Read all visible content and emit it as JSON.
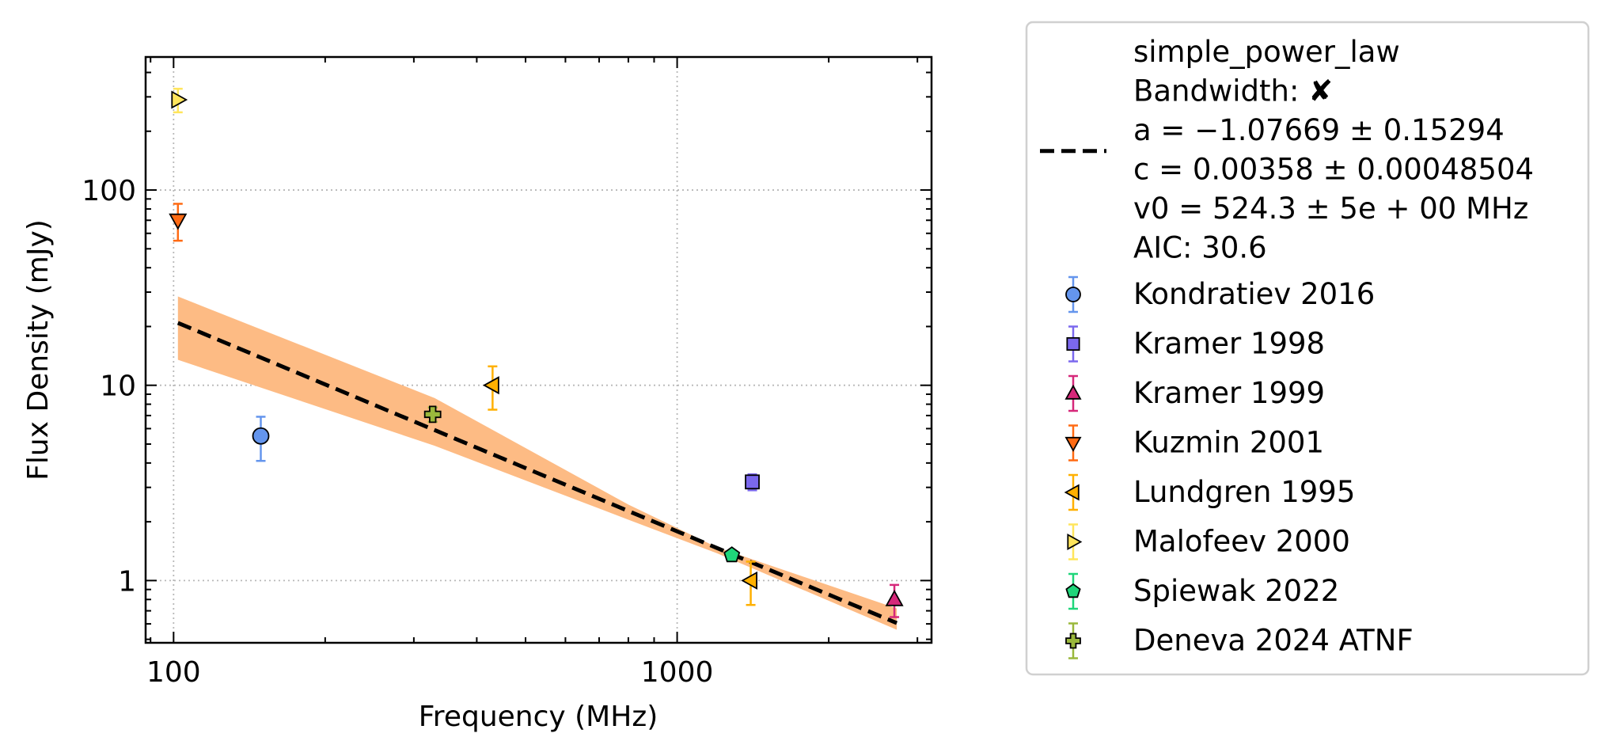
{
  "chart_data": {
    "type": "scatter",
    "xlabel": "Frequency (MHz)",
    "ylabel": "Flux Density (mJy)",
    "x_scale": "log",
    "y_scale": "log",
    "xlim": [
      88,
      3200
    ],
    "ylim": [
      0.48,
      480
    ],
    "x_ticks": [
      {
        "value": 100,
        "label": "100"
      },
      {
        "value": 1000,
        "label": "1000"
      }
    ],
    "y_ticks": [
      {
        "value": 1,
        "label": "1"
      },
      {
        "value": 10,
        "label": "10"
      },
      {
        "value": 100,
        "label": "100"
      }
    ],
    "grid": true,
    "legend_placement": "outside-right",
    "fit": {
      "label_lines": [
        "simple_power_law",
        "Bandwidth: ✘",
        "a = −1.07669 ± 0.15294",
        "c = 0.00358 ± 0.00048504",
        "v0 = 524.3 ± 5e + 00 MHz",
        "AIC: 30.6"
      ],
      "a": -1.07669,
      "c": 0.00358,
      "v0": 524.3,
      "x_range": [
        102,
        2730
      ],
      "line_color": "#000000",
      "band_color": "#fdbb84",
      "band_lower": [
        {
          "x": 102,
          "y": 13.5
        },
        {
          "x": 330,
          "y": 4.9
        },
        {
          "x": 800,
          "y": 2.05
        },
        {
          "x": 1200,
          "y": 1.38
        },
        {
          "x": 2730,
          "y": 0.56
        }
      ],
      "band_upper": [
        {
          "x": 102,
          "y": 28.5
        },
        {
          "x": 330,
          "y": 8.6
        },
        {
          "x": 800,
          "y": 2.45
        },
        {
          "x": 1200,
          "y": 1.48
        },
        {
          "x": 2730,
          "y": 0.72
        }
      ]
    },
    "series": [
      {
        "name": "Kondratiev 2016",
        "marker": "circle",
        "color": "#6495ed",
        "ecolor": "#6495ed",
        "points": [
          {
            "x": 149,
            "y": 5.5,
            "ylo": 4.1,
            "yhi": 6.9
          }
        ]
      },
      {
        "name": "Kramer 1998",
        "marker": "square",
        "color": "#7b68ee",
        "ecolor": "#7b68ee",
        "points": [
          {
            "x": 1410,
            "y": 3.2,
            "ylo": 2.9,
            "yhi": 3.5
          }
        ]
      },
      {
        "name": "Kramer 1999",
        "marker": "triangle-up",
        "color": "#d6287a",
        "ecolor": "#d6287a",
        "points": [
          {
            "x": 2700,
            "y": 0.8,
            "ylo": 0.65,
            "yhi": 0.95
          }
        ]
      },
      {
        "name": "Kuzmin 2001",
        "marker": "triangle-down",
        "color": "#ff6a13",
        "ecolor": "#ff6a13",
        "points": [
          {
            "x": 102,
            "y": 70,
            "ylo": 55,
            "yhi": 85
          }
        ]
      },
      {
        "name": "Lundgren 1995",
        "marker": "triangle-left",
        "color": "#ffb000",
        "ecolor": "#ffb000",
        "points": [
          {
            "x": 430,
            "y": 10,
            "ylo": 7.5,
            "yhi": 12.5
          },
          {
            "x": 1400,
            "y": 1.0,
            "ylo": 0.75,
            "yhi": 1.25
          }
        ]
      },
      {
        "name": "Malofeev 2000",
        "marker": "triangle-right",
        "color": "#ffe55c",
        "ecolor": "#ffe55c",
        "points": [
          {
            "x": 102,
            "y": 290,
            "ylo": 250,
            "yhi": 330
          }
        ]
      },
      {
        "name": "Spiewak 2022",
        "marker": "pentagon",
        "color": "#1fd67a",
        "ecolor": "#1fd67a",
        "points": [
          {
            "x": 1284,
            "y": 1.35,
            "ylo": 1.3,
            "yhi": 1.4
          }
        ]
      },
      {
        "name": "Deneva 2024 ATNF",
        "marker": "plus",
        "color": "#9ab83c",
        "ecolor": "#9ab83c",
        "points": [
          {
            "x": 327,
            "y": 7.1,
            "ylo": 6.5,
            "yhi": 7.7
          }
        ]
      }
    ]
  }
}
